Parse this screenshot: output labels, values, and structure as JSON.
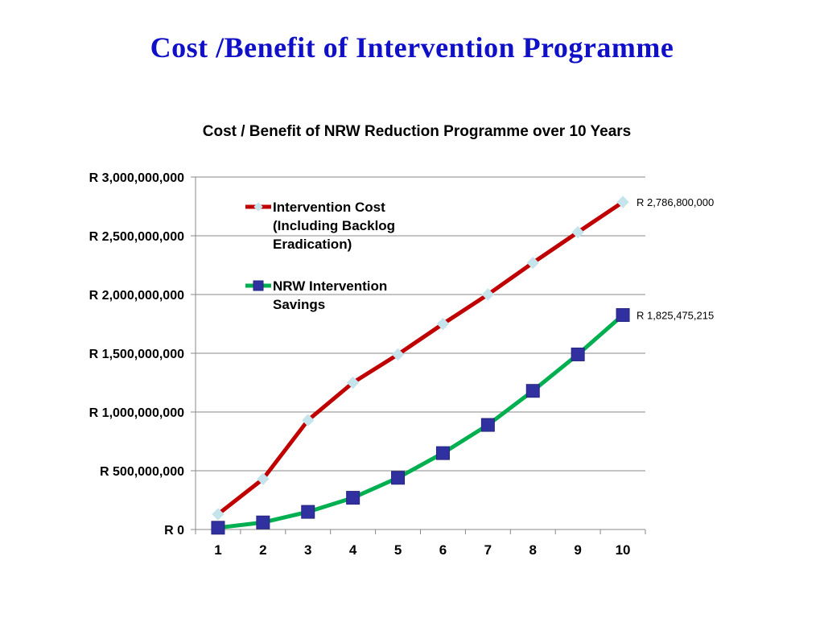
{
  "slide": {
    "title": "Cost /Benefit of Intervention Programme",
    "title_color": "#1010c8"
  },
  "chart_data": {
    "type": "line",
    "title": "Cost / Benefit of NRW Reduction Programme over 10 Years",
    "xlabel": "",
    "ylabel": "",
    "categories": [
      "1",
      "2",
      "3",
      "4",
      "5",
      "6",
      "7",
      "8",
      "9",
      "10"
    ],
    "ylim": [
      0,
      3000000000
    ],
    "y_ticks": [
      {
        "value": 0,
        "label": "R 0"
      },
      {
        "value": 500000000,
        "label": "R 500,000,000"
      },
      {
        "value": 1000000000,
        "label": "R 1,000,000,000"
      },
      {
        "value": 1500000000,
        "label": "R 1,500,000,000"
      },
      {
        "value": 2000000000,
        "label": "R 2,000,000,000"
      },
      {
        "value": 2500000000,
        "label": "R 2,500,000,000"
      },
      {
        "value": 3000000000,
        "label": "R 3,000,000,000"
      }
    ],
    "grid": true,
    "legend_position": "top-left",
    "series": [
      {
        "name": "Intervention Cost (Including Backlog Eradication)",
        "legend_lines": [
          "Intervention Cost",
          "(Including Backlog",
          "Eradication)"
        ],
        "values": [
          130000000,
          430000000,
          930000000,
          1250000000,
          1490000000,
          1750000000,
          2000000000,
          2270000000,
          2530000000,
          2786800000
        ],
        "color": "#c00000",
        "marker": "diamond",
        "marker_color": "#c6e4ec",
        "end_label": "R 2,786,800,000"
      },
      {
        "name": "NRW Intervention Savings",
        "legend_lines": [
          "NRW Intervention",
          "Savings"
        ],
        "values": [
          15000000,
          60000000,
          150000000,
          270000000,
          440000000,
          650000000,
          890000000,
          1180000000,
          1490000000,
          1825475215
        ],
        "color": "#00b050",
        "marker": "square",
        "marker_color": "#3030a0",
        "end_label": "R 1,825,475,215"
      }
    ]
  }
}
